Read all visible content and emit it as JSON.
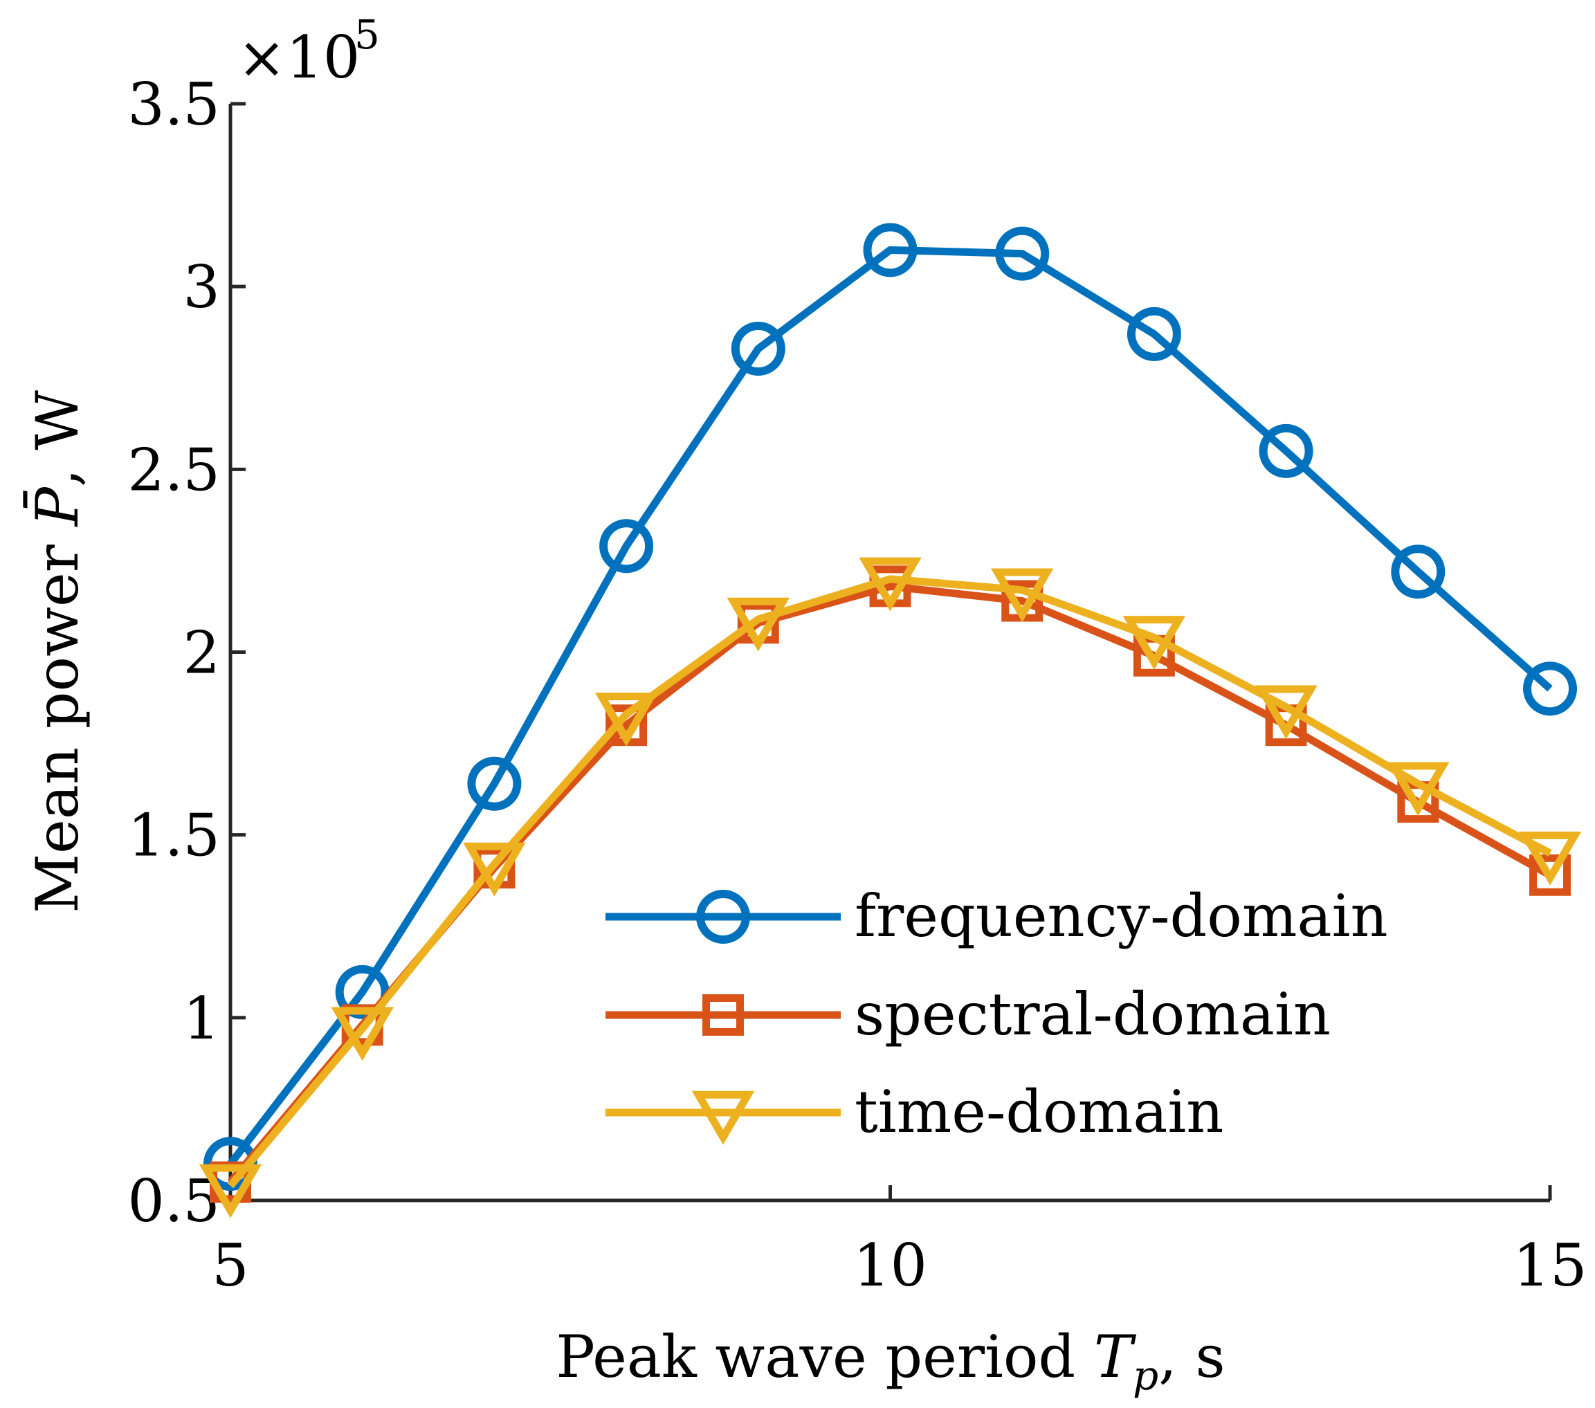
{
  "chart_data": {
    "type": "line",
    "title": "",
    "xlabel": "Peak wave period T_p, s",
    "ylabel": "Mean power P̄, W",
    "y_multiplier": "×10^5",
    "xlim": [
      5,
      15
    ],
    "ylim": [
      0.5,
      3.5
    ],
    "x_ticks": [
      5,
      10,
      15
    ],
    "x_tick_labels": [
      "5",
      "10",
      "15"
    ],
    "y_ticks": [
      0.5,
      1,
      1.5,
      2,
      2.5,
      3,
      3.5
    ],
    "y_tick_labels": [
      "0.5",
      "1",
      "1.5",
      "2",
      "2.5",
      "3",
      "3.5"
    ],
    "grid": false,
    "legend_position": "bottom-right",
    "x": [
      5,
      6,
      7,
      8,
      9,
      10,
      11,
      12,
      13,
      14,
      15
    ],
    "series": [
      {
        "name": "frequency-domain",
        "color": "#0072BD",
        "marker": "circle",
        "values": [
          0.6,
          1.07,
          1.64,
          2.29,
          2.83,
          3.1,
          3.09,
          2.87,
          2.55,
          2.22,
          1.9
        ]
      },
      {
        "name": "spectral-domain",
        "color": "#D95319",
        "marker": "square",
        "values": [
          0.55,
          0.98,
          1.41,
          1.8,
          2.08,
          2.18,
          2.14,
          1.99,
          1.8,
          1.59,
          1.39
        ]
      },
      {
        "name": "time-domain",
        "color": "#EDB120",
        "marker": "triangle-down",
        "values": [
          0.54,
          0.97,
          1.42,
          1.83,
          2.09,
          2.2,
          2.17,
          2.04,
          1.85,
          1.64,
          1.45
        ]
      }
    ]
  }
}
